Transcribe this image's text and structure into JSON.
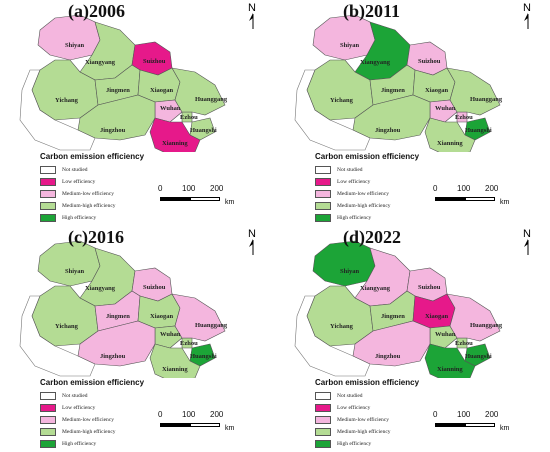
{
  "legend": {
    "title": "Carbon emission efficiency",
    "items": [
      {
        "label": "Not studied",
        "color": "#ffffff"
      },
      {
        "label": "Low efficiency",
        "color": "#e6198a"
      },
      {
        "label": "Medium-low efficiency",
        "color": "#f4b6de"
      },
      {
        "label": "Medium-high efficiency",
        "color": "#b4dc94"
      },
      {
        "label": "High efficiency",
        "color": "#1ca437"
      }
    ]
  },
  "scale": {
    "ticks": [
      "0",
      "100",
      "200"
    ],
    "unit": "km"
  },
  "north_label": "N",
  "panels": [
    {
      "title": "(a)2006",
      "cities": {
        "Shiyan": "Medium-low efficiency",
        "Xiangyang": "Medium-high efficiency",
        "Suizhou": "Low efficiency",
        "Yichang": "Medium-high efficiency",
        "Jingmen": "Medium-high efficiency",
        "Xiaogan": "Medium-high efficiency",
        "Wuhan": "Medium-low efficiency",
        "Ezhou": "Medium-high efficiency",
        "Huanggang": "Medium-high efficiency",
        "Huangshi": "Medium-high efficiency",
        "Jingzhou": "Medium-high efficiency",
        "Xianning": "Low efficiency"
      }
    },
    {
      "title": "(b)2011",
      "cities": {
        "Shiyan": "Medium-low efficiency",
        "Xiangyang": "High efficiency",
        "Suizhou": "Medium-low efficiency",
        "Yichang": "Medium-high efficiency",
        "Jingmen": "Medium-high efficiency",
        "Xiaogan": "Medium-high efficiency",
        "Wuhan": "Medium-low efficiency",
        "Ezhou": "Medium-low efficiency",
        "Huanggang": "Medium-high efficiency",
        "Huangshi": "High efficiency",
        "Jingzhou": "Medium-high efficiency",
        "Xianning": "Medium-high efficiency"
      }
    },
    {
      "title": "(c)2016",
      "cities": {
        "Shiyan": "Medium-high efficiency",
        "Xiangyang": "Medium-high efficiency",
        "Suizhou": "Medium-low efficiency",
        "Yichang": "Medium-high efficiency",
        "Jingmen": "Medium-low efficiency",
        "Xiaogan": "Medium-high efficiency",
        "Wuhan": "Medium-high efficiency",
        "Ezhou": "Medium-high efficiency",
        "Huanggang": "Medium-low efficiency",
        "Huangshi": "High efficiency",
        "Jingzhou": "Medium-low efficiency",
        "Xianning": "Medium-high efficiency"
      }
    },
    {
      "title": "(d)2022",
      "cities": {
        "Shiyan": "High efficiency",
        "Xiangyang": "Medium-low efficiency",
        "Suizhou": "Medium-low efficiency",
        "Yichang": "Medium-high efficiency",
        "Jingmen": "Medium-high efficiency",
        "Xiaogan": "Low efficiency",
        "Wuhan": "Medium-high efficiency",
        "Ezhou": "Medium-high efficiency",
        "Huanggang": "Medium-low efficiency",
        "Huangshi": "High efficiency",
        "Jingzhou": "Medium-low efficiency",
        "Xianning": "High efficiency"
      }
    }
  ]
}
